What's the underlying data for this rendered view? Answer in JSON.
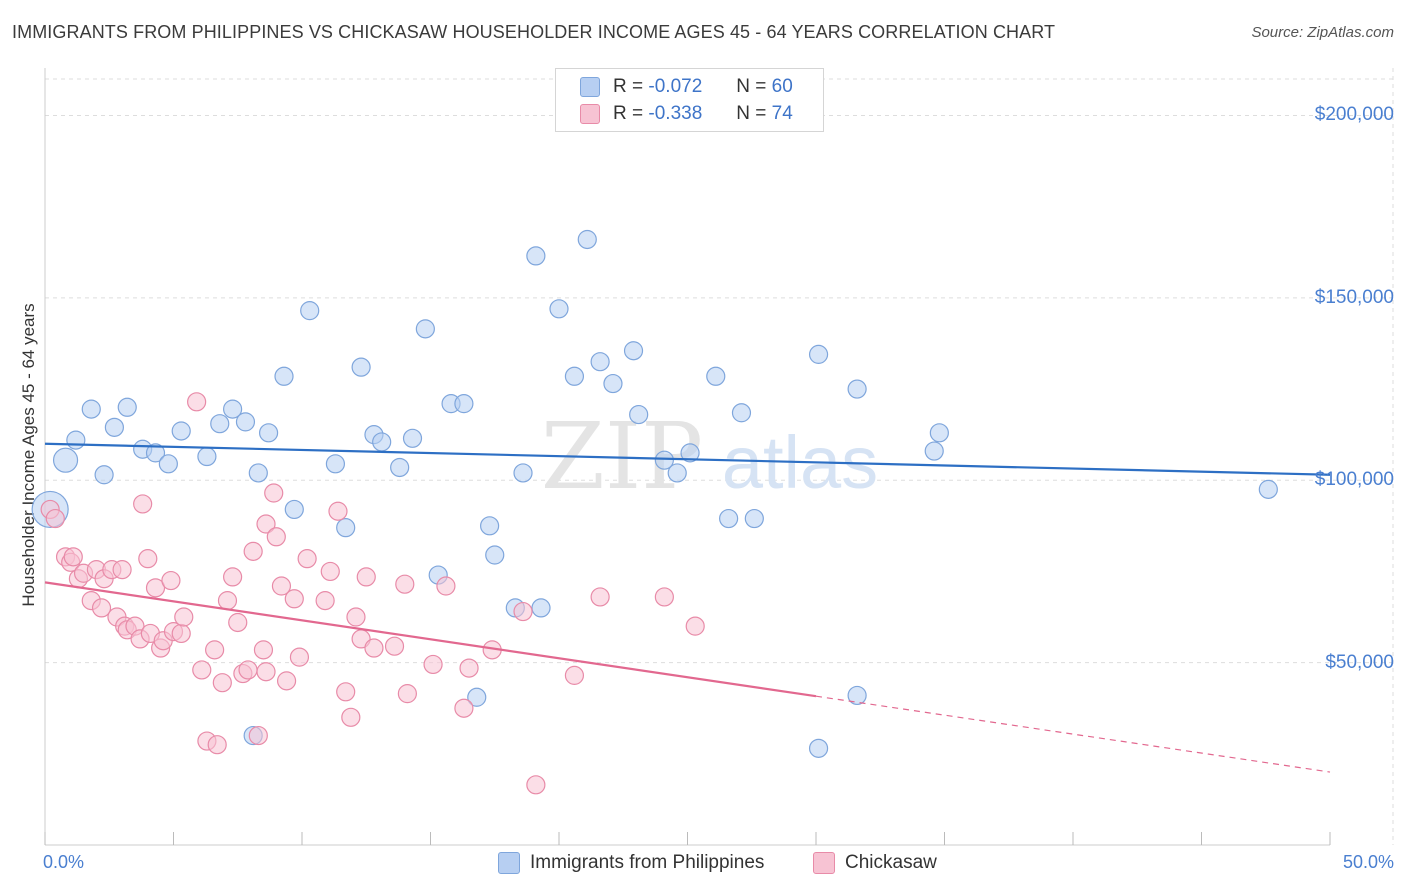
{
  "title": "IMMIGRANTS FROM PHILIPPINES VS CHICKASAW HOUSEHOLDER INCOME AGES 45 - 64 YEARS CORRELATION CHART",
  "source": "Source: ZipAtlas.com",
  "watermark": {
    "zip": "ZIP",
    "atlas": "atlas"
  },
  "legend_top": [
    {
      "r_label": "R =",
      "r_value": "-0.072",
      "n_label": "N =",
      "n_value": "60"
    },
    {
      "r_label": "R =",
      "r_value": "-0.338",
      "n_label": "N =",
      "n_value": "74"
    }
  ],
  "colors": {
    "blue_fill": "#b7cff2",
    "blue_stroke": "#7fa6dc",
    "blue_line": "#2d6fc4",
    "pink_fill": "#f7c3d3",
    "pink_stroke": "#e88ba8",
    "pink_line": "#e2688f",
    "grid": "#dddddd",
    "tick_label": "#4a7fd0"
  },
  "chart_data": {
    "type": "scatter",
    "title": "IMMIGRANTS FROM PHILIPPINES VS CHICKASAW HOUSEHOLDER INCOME AGES 45 - 64 YEARS CORRELATION CHART",
    "xlabel": "",
    "ylabel": "Householder Income Ages 45 - 64 years",
    "xlim": [
      0,
      50
    ],
    "ylim": [
      0,
      210000
    ],
    "x_tick_labels": [
      "0.0%",
      "50.0%"
    ],
    "y_ticks": [
      50000,
      100000,
      150000,
      200000
    ],
    "y_tick_labels": [
      "$50,000",
      "$100,000",
      "$150,000",
      "$200,000"
    ],
    "legend_position": "bottom-center",
    "series": [
      {
        "name": "Immigrants from Philippines",
        "r": -0.072,
        "n": 60,
        "trend": {
          "x": [
            0,
            50
          ],
          "y": [
            110000,
            101500
          ],
          "dashed_from": null
        },
        "points": [
          [
            0.2,
            92000
          ],
          [
            0.8,
            105500
          ],
          [
            1.2,
            111000
          ],
          [
            1.8,
            119500
          ],
          [
            2.3,
            101500
          ],
          [
            2.7,
            114500
          ],
          [
            3.2,
            120000
          ],
          [
            3.8,
            108500
          ],
          [
            4.3,
            107500
          ],
          [
            4.8,
            104500
          ],
          [
            5.3,
            113500
          ],
          [
            6.3,
            106500
          ],
          [
            6.8,
            115500
          ],
          [
            7.3,
            119500
          ],
          [
            7.8,
            116000
          ],
          [
            8.3,
            102000
          ],
          [
            8.7,
            113000
          ],
          [
            9.3,
            128500
          ],
          [
            9.7,
            92000
          ],
          [
            10.3,
            146500
          ],
          [
            11.3,
            104500
          ],
          [
            11.7,
            87000
          ],
          [
            12.3,
            131000
          ],
          [
            12.8,
            112500
          ],
          [
            13.1,
            110500
          ],
          [
            13.8,
            103500
          ],
          [
            14.3,
            111500
          ],
          [
            14.8,
            141500
          ],
          [
            15.3,
            74000
          ],
          [
            15.8,
            121000
          ],
          [
            16.3,
            121000
          ],
          [
            16.8,
            40500
          ],
          [
            17.3,
            87500
          ],
          [
            17.5,
            79500
          ],
          [
            18.3,
            65000
          ],
          [
            18.6,
            102000
          ],
          [
            19.1,
            161500
          ],
          [
            19.3,
            65000
          ],
          [
            20.0,
            147000
          ],
          [
            20.6,
            128500
          ],
          [
            21.1,
            166000
          ],
          [
            21.6,
            132500
          ],
          [
            22.1,
            126500
          ],
          [
            22.9,
            135500
          ],
          [
            23.1,
            118000
          ],
          [
            24.1,
            105500
          ],
          [
            24.6,
            102000
          ],
          [
            25.1,
            107500
          ],
          [
            26.1,
            128500
          ],
          [
            26.6,
            89500
          ],
          [
            27.1,
            118500
          ],
          [
            27.6,
            89500
          ],
          [
            30.1,
            26500
          ],
          [
            30.1,
            134500
          ],
          [
            31.6,
            41000
          ],
          [
            31.6,
            125000
          ],
          [
            34.6,
            108000
          ],
          [
            34.8,
            113000
          ],
          [
            47.6,
            97500
          ],
          [
            8.1,
            30000
          ]
        ]
      },
      {
        "name": "Chickasaw",
        "r": -0.338,
        "n": 74,
        "trend": {
          "x": [
            0,
            50
          ],
          "y": [
            72000,
            20000
          ],
          "dashed_from": 30
        },
        "points": [
          [
            0.2,
            92000
          ],
          [
            0.4,
            89500
          ],
          [
            0.8,
            79000
          ],
          [
            1.0,
            77500
          ],
          [
            1.1,
            79000
          ],
          [
            1.3,
            73000
          ],
          [
            1.5,
            74500
          ],
          [
            1.8,
            67000
          ],
          [
            2.0,
            75500
          ],
          [
            2.2,
            65000
          ],
          [
            2.3,
            73000
          ],
          [
            2.6,
            75500
          ],
          [
            2.8,
            62500
          ],
          [
            3.0,
            75500
          ],
          [
            3.1,
            60000
          ],
          [
            3.2,
            59000
          ],
          [
            3.5,
            60000
          ],
          [
            3.7,
            56500
          ],
          [
            3.8,
            93500
          ],
          [
            4.0,
            78500
          ],
          [
            4.1,
            58000
          ],
          [
            4.3,
            70500
          ],
          [
            4.5,
            54000
          ],
          [
            4.6,
            56000
          ],
          [
            4.9,
            72500
          ],
          [
            5.0,
            58500
          ],
          [
            5.3,
            58000
          ],
          [
            5.4,
            62500
          ],
          [
            5.9,
            121500
          ],
          [
            6.1,
            48000
          ],
          [
            6.3,
            28500
          ],
          [
            6.6,
            53500
          ],
          [
            6.7,
            27500
          ],
          [
            6.9,
            44500
          ],
          [
            7.1,
            67000
          ],
          [
            7.3,
            73500
          ],
          [
            7.5,
            61000
          ],
          [
            7.7,
            47000
          ],
          [
            7.9,
            48000
          ],
          [
            8.1,
            80500
          ],
          [
            8.3,
            30000
          ],
          [
            8.5,
            53500
          ],
          [
            8.6,
            88000
          ],
          [
            8.9,
            96500
          ],
          [
            9.0,
            84500
          ],
          [
            9.2,
            71000
          ],
          [
            9.4,
            45000
          ],
          [
            9.7,
            67500
          ],
          [
            9.9,
            51500
          ],
          [
            10.2,
            78500
          ],
          [
            10.9,
            67000
          ],
          [
            11.1,
            75000
          ],
          [
            11.4,
            91500
          ],
          [
            11.7,
            42000
          ],
          [
            11.9,
            35000
          ],
          [
            12.1,
            62500
          ],
          [
            12.3,
            56500
          ],
          [
            12.5,
            73500
          ],
          [
            12.8,
            54000
          ],
          [
            13.6,
            54500
          ],
          [
            14.0,
            71500
          ],
          [
            14.1,
            41500
          ],
          [
            15.1,
            49500
          ],
          [
            15.6,
            71000
          ],
          [
            16.3,
            37500
          ],
          [
            16.5,
            48500
          ],
          [
            17.4,
            53500
          ],
          [
            18.6,
            64000
          ],
          [
            19.1,
            16500
          ],
          [
            20.6,
            46500
          ],
          [
            21.6,
            68000
          ],
          [
            24.1,
            68000
          ],
          [
            25.3,
            60000
          ],
          [
            8.6,
            47500
          ]
        ]
      }
    ]
  }
}
